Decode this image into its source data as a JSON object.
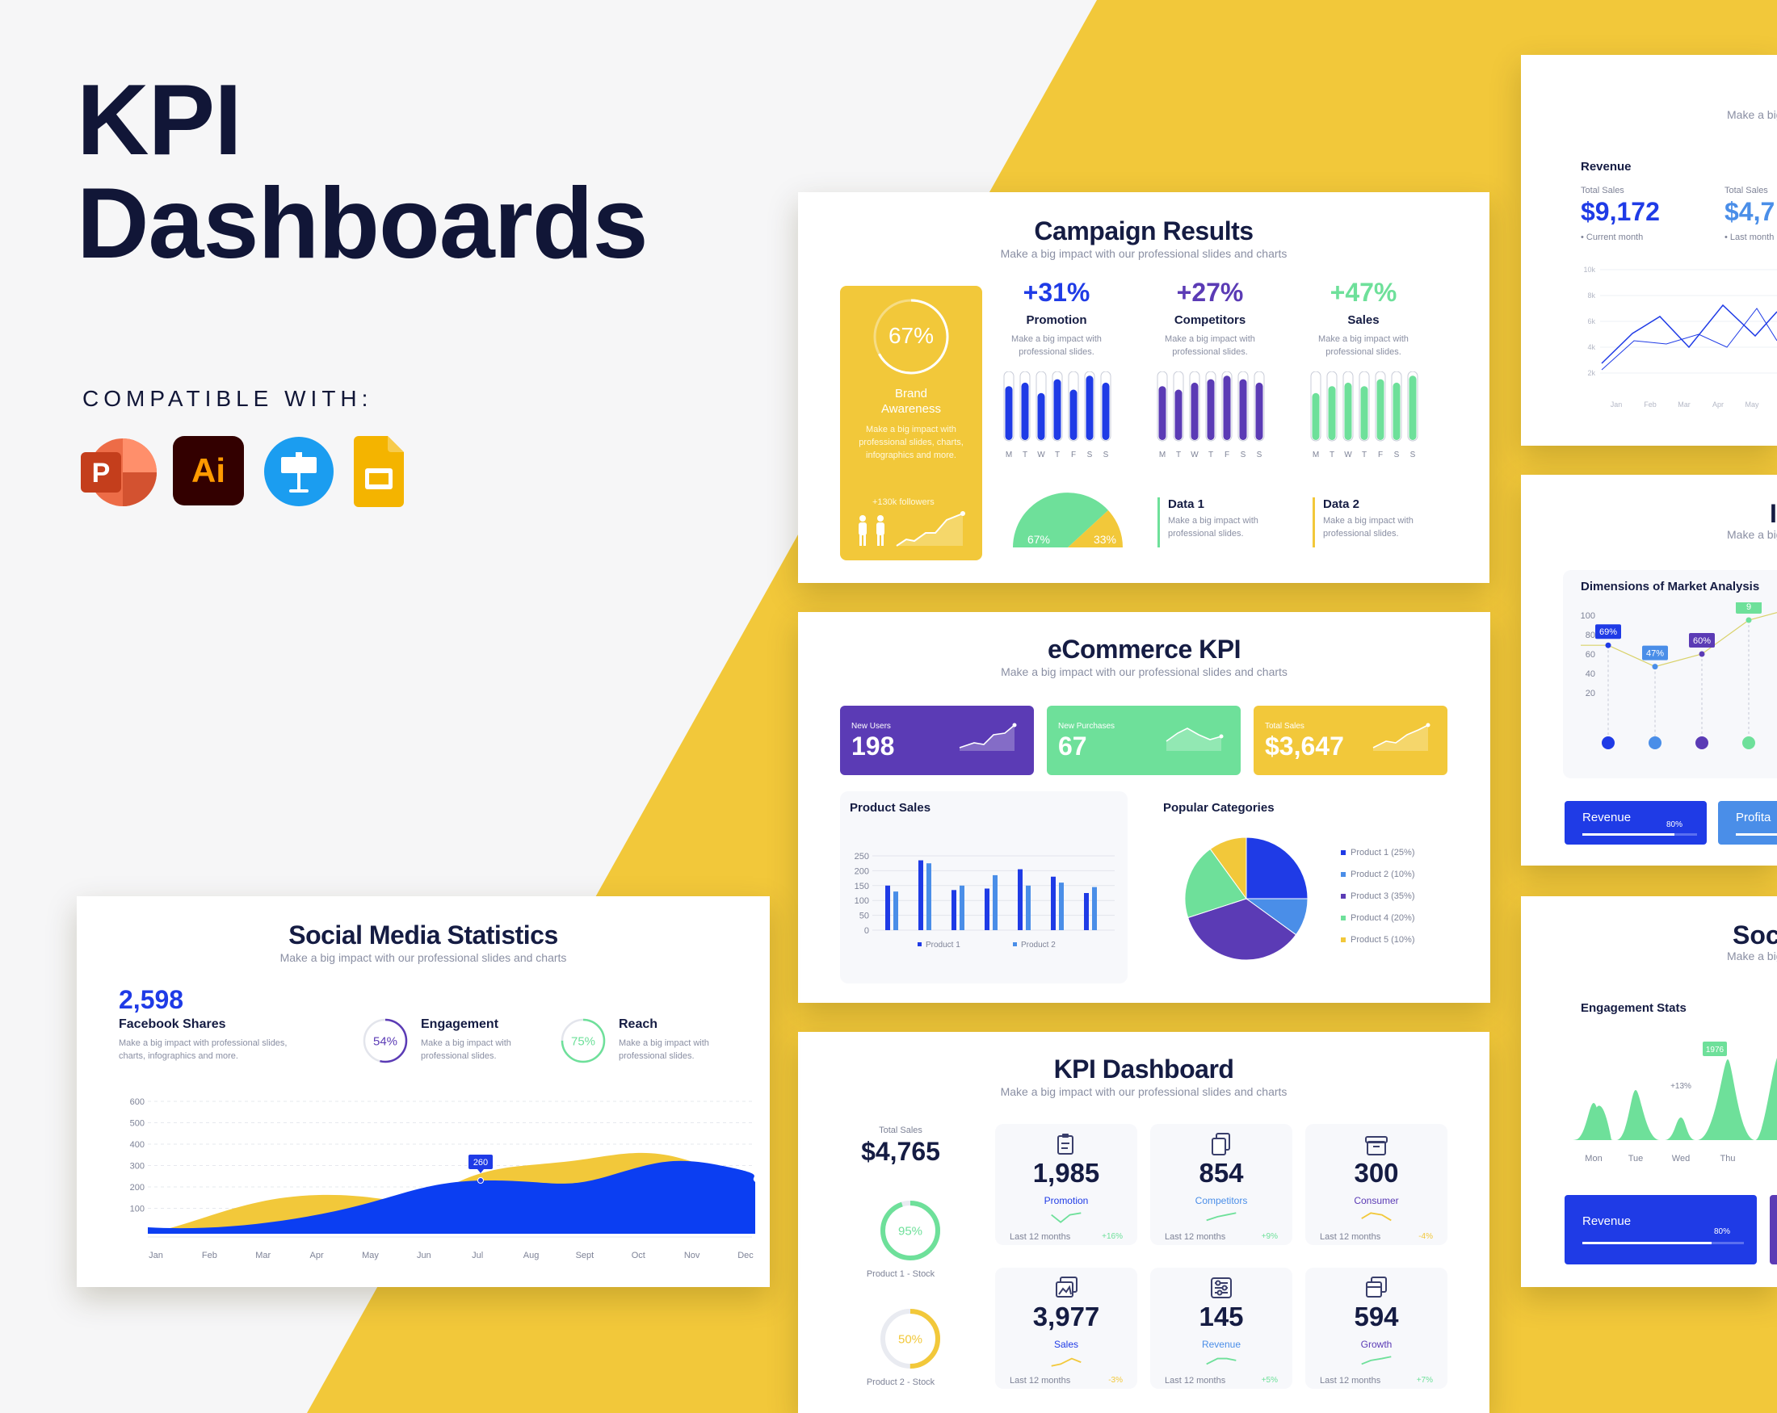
{
  "hero": {
    "title_line1": "KPI",
    "title_line2": "Dashboards",
    "compatible": "COMPATIBLE WITH:"
  },
  "apps": [
    {
      "name": "powerpoint-icon",
      "letter": "P",
      "color": "#c43e1c"
    },
    {
      "name": "illustrator-icon",
      "letter": "Ai",
      "color": "#330000",
      "text_color": "#ff9a00"
    },
    {
      "name": "keynote-icon",
      "color": "#1b9df0"
    },
    {
      "name": "google-slides-icon",
      "color": "#f4b400"
    }
  ],
  "colors": {
    "yellow": "#f2c83a",
    "blue": "#1f3be6",
    "purple": "#5b3bb5",
    "green": "#6ee09a",
    "lightblue": "#4a8ee8",
    "navy": "#151c43"
  },
  "campaign": {
    "title": "Campaign Results",
    "subtitle": "Make a big impact with our professional slides and charts",
    "brand": {
      "percent": "67%",
      "label": "Brand Awareness",
      "desc": "Make a big impact with professional slides, charts, infographics and more.",
      "followers": "+130k followers",
      "progress": 0.67
    },
    "metrics": [
      {
        "value": "+31%",
        "label": "Promotion",
        "desc": "Make a big impact with professional slides.",
        "color": "#1f3be6",
        "bars": [
          0.8,
          0.85,
          0.7,
          0.9,
          0.75,
          0.95,
          0.85
        ]
      },
      {
        "value": "+27%",
        "label": "Competitors",
        "desc": "Make a big impact with professional slides.",
        "color": "#5b3bb5",
        "bars": [
          0.8,
          0.75,
          0.85,
          0.9,
          0.95,
          0.9,
          0.85
        ]
      },
      {
        "value": "+47%",
        "label": "Sales",
        "desc": "Make a big impact with professional slides.",
        "color": "#6ee09a",
        "bars": [
          0.7,
          0.8,
          0.85,
          0.8,
          0.9,
          0.85,
          0.95
        ]
      }
    ],
    "days": [
      "M",
      "T",
      "W",
      "T",
      "F",
      "S",
      "S"
    ],
    "semi": {
      "left": "67%",
      "right": "33%"
    },
    "data_items": [
      {
        "title": "Data 1",
        "desc": "Make a big impact with professional slides.",
        "color": "#6ee09a"
      },
      {
        "title": "Data 2",
        "desc": "Make a big impact with professional slides.",
        "color": "#f2c83a"
      }
    ]
  },
  "ecommerce": {
    "title": "eCommerce KPI",
    "subtitle": "Make a big impact with our professional slides and charts",
    "cards": [
      {
        "label": "New Users",
        "value": "198",
        "color": "#5b3bb5"
      },
      {
        "label": "New Purchases",
        "value": "67",
        "color": "#6ee09a"
      },
      {
        "label": "Total Sales",
        "value": "$3,647",
        "color": "#f2c83a"
      }
    ],
    "product_sales": {
      "title": "Product Sales",
      "yticks": [
        "250",
        "200",
        "150",
        "100",
        "50",
        "0"
      ],
      "legend": [
        "Product 1",
        "Product 2"
      ]
    },
    "popular": {
      "title": "Popular Categories",
      "legend": [
        "Product 1 (25%)",
        "Product 2 (10%)",
        "Product 3 (35%)",
        "Product 4 (20%)",
        "Product 5 (10%)"
      ]
    }
  },
  "kpi": {
    "title": "KPI Dashboard",
    "subtitle": "Make a big impact with our professional slides and charts",
    "total_label": "Total Sales",
    "total_value": "$4,765",
    "stock": [
      {
        "percent": "95%",
        "label": "Product 1 - Stock",
        "color": "#6ee09a",
        "progress": 0.95
      },
      {
        "percent": "50%",
        "label": "Product 2 - Stock",
        "color": "#f2c83a",
        "progress": 0.5
      }
    ],
    "boxes": [
      {
        "value": "1,985",
        "label": "Promotion",
        "period": "Last 12 months",
        "change": "+16%",
        "label_color": "#1f3be6",
        "change_color": "#6ee09a",
        "spark": "#6ee09a",
        "icon": "clipboard-icon"
      },
      {
        "value": "854",
        "label": "Competitors",
        "period": "Last 12 months",
        "change": "+9%",
        "label_color": "#4a8ee8",
        "change_color": "#6ee09a",
        "spark": "#6ee09a",
        "icon": "documents-icon"
      },
      {
        "value": "300",
        "label": "Consumer",
        "period": "Last 12 months",
        "change": "-4%",
        "label_color": "#5b3bb5",
        "change_color": "#f2c83a",
        "spark": "#f2c83a",
        "icon": "box-icon"
      },
      {
        "value": "3,977",
        "label": "Sales",
        "period": "Last 12 months",
        "change": "-3%",
        "label_color": "#1f3be6",
        "change_color": "#f2c83a",
        "spark": "#f2c83a",
        "icon": "image-icon"
      },
      {
        "value": "145",
        "label": "Revenue",
        "period": "Last 12 months",
        "change": "+5%",
        "label_color": "#4a8ee8",
        "change_color": "#6ee09a",
        "spark": "#6ee09a",
        "icon": "sliders-icon"
      },
      {
        "value": "594",
        "label": "Growth",
        "period": "Last 12 months",
        "change": "+7%",
        "label_color": "#5b3bb5",
        "change_color": "#6ee09a",
        "spark": "#6ee09a",
        "icon": "layers-icon"
      }
    ]
  },
  "social": {
    "title": "Social Media Statistics",
    "subtitle": "Make a big impact with our professional slides and charts",
    "shares_value": "2,598",
    "shares_label": "Facebook Shares",
    "shares_desc": "Make a big impact with professional slides, charts, infographics and more.",
    "engagement": {
      "percent": "54%",
      "label": "Engagement",
      "desc": "Make a big impact with professional slides.",
      "progress": 0.54,
      "color": "#5b3bb5"
    },
    "reach": {
      "percent": "75%",
      "label": "Reach",
      "desc": "Make a big impact with professional slides.",
      "progress": 0.75,
      "color": "#6ee09a"
    },
    "marker": "260",
    "yticks": [
      "600",
      "500",
      "400",
      "300",
      "200",
      "100"
    ],
    "months": [
      "Jan",
      "Feb",
      "Mar",
      "Apr",
      "May",
      "Jun",
      "Jul",
      "Aug",
      "Sept",
      "Oct",
      "Nov",
      "Dec"
    ]
  },
  "right_revenue": {
    "subtitle": "Make a big",
    "title": "Revenue",
    "total1_label": "Total Sales",
    "total1_value": "$9,172",
    "total1_period": "Current month",
    "total2_label": "Total Sales",
    "total2_value": "$4,7",
    "total2_period": "Last month",
    "yticks": [
      "10k",
      "8k",
      "6k",
      "4k",
      "2k"
    ],
    "months": [
      "Jan",
      "Feb",
      "Mar",
      "Apr",
      "May"
    ]
  },
  "right_market": {
    "heading": "I",
    "subtitle": "Make a big",
    "title": "Dimensions of Market Analysis",
    "yticks": [
      "100",
      "80",
      "60",
      "40",
      "20"
    ],
    "points": [
      {
        "label": "69%",
        "value": 69,
        "color": "#1f3be6"
      },
      {
        "label": "47%",
        "value": 47,
        "color": "#4a8ee8"
      },
      {
        "label": "60%",
        "value": 60,
        "color": "#5b3bb5"
      },
      {
        "label": "9",
        "value": 95,
        "color": "#6ee09a"
      }
    ],
    "btn1": "Revenue",
    "btn1_pct": "80%",
    "btn2": "Profita"
  },
  "right_social": {
    "heading": "Soc",
    "subtitle": "Make a big",
    "title": "Engagement Stats",
    "peak_label": "1976",
    "growth_label": "+13%",
    "days": [
      "Mon",
      "Tue",
      "Wed",
      "Thu"
    ],
    "btn": "Revenue",
    "btn_pct": "80%"
  }
}
